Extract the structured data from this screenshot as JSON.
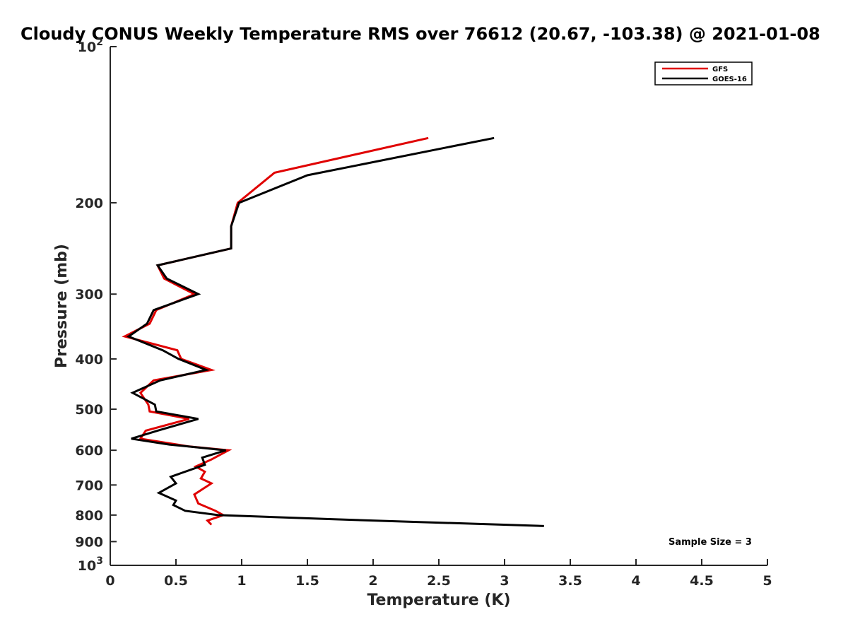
{
  "chart_data": {
    "type": "line",
    "title": "Cloudy CONUS Weekly Temperature RMS over 76612 (20.67, -103.38) @ 2021-01-08",
    "xlabel": "Temperature (K)",
    "ylabel": "Pressure (mb)",
    "xlim": [
      0,
      5
    ],
    "ylim": [
      100,
      1000
    ],
    "y_scale": "log",
    "y_reversed": true,
    "x_ticks": [
      "0",
      "0.5",
      "1",
      "1.5",
      "2",
      "2.5",
      "3",
      "3.5",
      "4",
      "4.5",
      "5"
    ],
    "y_ticks": [
      {
        "value": 100,
        "base": "10",
        "exp": "2"
      },
      {
        "value": 200,
        "label": "200"
      },
      {
        "value": 300,
        "label": "300"
      },
      {
        "value": 400,
        "label": "400"
      },
      {
        "value": 500,
        "label": "500"
      },
      {
        "value": 600,
        "label": "600"
      },
      {
        "value": 700,
        "label": "700"
      },
      {
        "value": 800,
        "label": "800"
      },
      {
        "value": 900,
        "label": "900"
      },
      {
        "value": 1000,
        "base": "10",
        "exp": "3"
      }
    ],
    "grid": false,
    "legend_position": "top-right",
    "annotation": "Sample Size = 3",
    "series": [
      {
        "name": "GFS",
        "color": "#e00000",
        "points": [
          [
            2.42,
            150
          ],
          [
            1.25,
            175
          ],
          [
            0.97,
            200
          ],
          [
            0.92,
            222
          ],
          [
            0.92,
            245
          ],
          [
            0.36,
            264
          ],
          [
            0.41,
            280
          ],
          [
            0.64,
            300
          ],
          [
            0.35,
            322
          ],
          [
            0.3,
            342
          ],
          [
            0.11,
            362
          ],
          [
            0.51,
            385
          ],
          [
            0.54,
            400
          ],
          [
            0.77,
            420
          ],
          [
            0.33,
            440
          ],
          [
            0.23,
            465
          ],
          [
            0.29,
            490
          ],
          [
            0.3,
            505
          ],
          [
            0.6,
            522
          ],
          [
            0.27,
            550
          ],
          [
            0.23,
            570
          ],
          [
            0.6,
            590
          ],
          [
            0.9,
            600
          ],
          [
            0.77,
            625
          ],
          [
            0.65,
            645
          ],
          [
            0.72,
            660
          ],
          [
            0.69,
            680
          ],
          [
            0.77,
            695
          ],
          [
            0.64,
            730
          ],
          [
            0.67,
            760
          ],
          [
            0.8,
            785
          ],
          [
            0.86,
            800
          ],
          [
            0.74,
            820
          ],
          [
            0.77,
            835
          ]
        ]
      },
      {
        "name": "GOES-16",
        "color": "#000000",
        "points": [
          [
            2.92,
            150
          ],
          [
            1.5,
            177
          ],
          [
            0.98,
            200
          ],
          [
            0.92,
            222
          ],
          [
            0.92,
            245
          ],
          [
            0.36,
            264
          ],
          [
            0.43,
            280
          ],
          [
            0.67,
            300
          ],
          [
            0.33,
            322
          ],
          [
            0.28,
            342
          ],
          [
            0.14,
            362
          ],
          [
            0.4,
            385
          ],
          [
            0.52,
            400
          ],
          [
            0.73,
            420
          ],
          [
            0.38,
            440
          ],
          [
            0.17,
            465
          ],
          [
            0.34,
            490
          ],
          [
            0.35,
            505
          ],
          [
            0.67,
            522
          ],
          [
            0.36,
            550
          ],
          [
            0.16,
            570
          ],
          [
            0.45,
            585
          ],
          [
            0.88,
            600
          ],
          [
            0.7,
            620
          ],
          [
            0.72,
            640
          ],
          [
            0.46,
            675
          ],
          [
            0.5,
            695
          ],
          [
            0.37,
            725
          ],
          [
            0.5,
            750
          ],
          [
            0.48,
            765
          ],
          [
            0.57,
            785
          ],
          [
            0.82,
            800
          ],
          [
            1.7,
            815
          ],
          [
            3.3,
            840
          ]
        ]
      }
    ]
  }
}
